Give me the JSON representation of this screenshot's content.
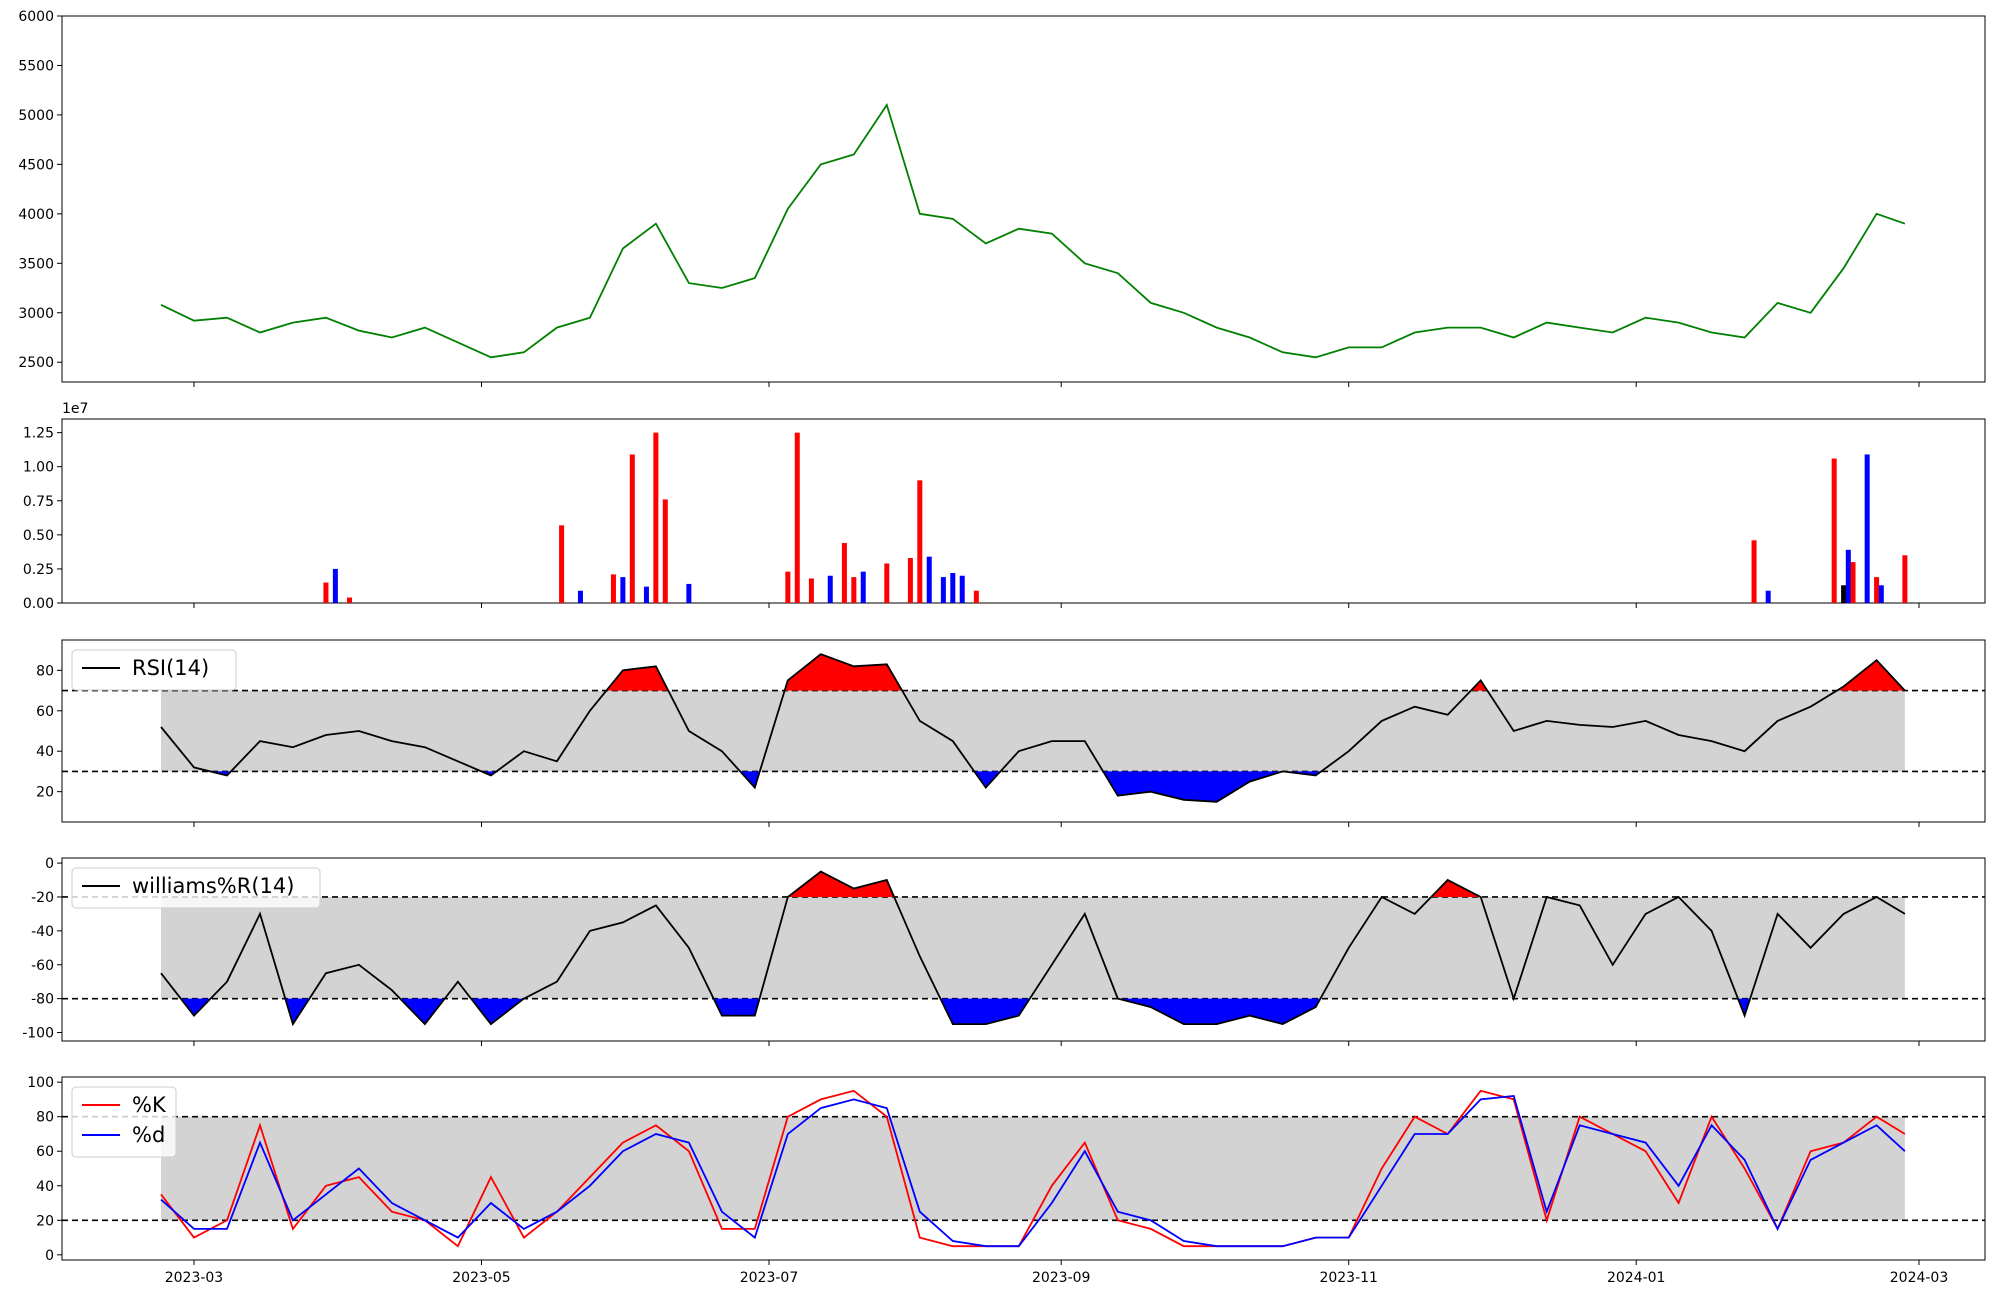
{
  "chart_data": [
    {
      "type": "line",
      "panel": "price",
      "ylim": [
        2300,
        6000
      ],
      "yticks": [
        2500,
        3000,
        3500,
        4000,
        4500,
        5000,
        5500,
        6000
      ],
      "color": "#008000",
      "x": [
        "2023-02-22",
        "2023-03-01",
        "2023-03-08",
        "2023-03-15",
        "2023-03-22",
        "2023-03-29",
        "2023-04-05",
        "2023-04-12",
        "2023-04-19",
        "2023-04-26",
        "2023-05-03",
        "2023-05-10",
        "2023-05-17",
        "2023-05-24",
        "2023-05-31",
        "2023-06-07",
        "2023-06-14",
        "2023-06-21",
        "2023-06-28",
        "2023-07-05",
        "2023-07-12",
        "2023-07-19",
        "2023-07-26",
        "2023-08-02",
        "2023-08-09",
        "2023-08-16",
        "2023-08-23",
        "2023-08-30",
        "2023-09-06",
        "2023-09-13",
        "2023-09-20",
        "2023-09-27",
        "2023-10-04",
        "2023-10-11",
        "2023-10-18",
        "2023-10-25",
        "2023-11-01",
        "2023-11-08",
        "2023-11-15",
        "2023-11-22",
        "2023-11-29",
        "2023-12-06",
        "2023-12-13",
        "2023-12-20",
        "2023-12-27",
        "2024-01-03",
        "2024-01-10",
        "2024-01-17",
        "2024-01-24",
        "2024-01-31",
        "2024-02-07",
        "2024-02-14",
        "2024-02-21",
        "2024-02-27"
      ],
      "values": [
        3080,
        2920,
        2950,
        2800,
        2900,
        2950,
        2820,
        2750,
        2850,
        2700,
        2550,
        2600,
        2850,
        2950,
        3650,
        3900,
        3300,
        3250,
        3350,
        4050,
        4500,
        4600,
        5100,
        4000,
        3950,
        3700,
        3850,
        3800,
        3500,
        3400,
        3100,
        3000,
        2850,
        2750,
        2600,
        2550,
        2650,
        2650,
        2800,
        2850,
        2850,
        2750,
        2900,
        2850,
        2800,
        2950,
        2900,
        2800,
        2750,
        3100,
        3000,
        3450,
        4000,
        3900
      ]
    },
    {
      "type": "bar",
      "panel": "volume",
      "ylim": [
        0,
        13500000
      ],
      "yticks": [
        0,
        0.25,
        0.5,
        0.75,
        1.0,
        1.25
      ],
      "ytick_labels": [
        "0.00",
        "0.25",
        "0.50",
        "0.75",
        "1.00",
        "1.25"
      ],
      "offset_label": "1e7",
      "up_color": "#ff0000",
      "down_color": "#0000ff",
      "bars": [
        {
          "x": "2023-03-29",
          "v": 1500000,
          "c": "r"
        },
        {
          "x": "2023-03-31",
          "v": 2500000,
          "c": "b"
        },
        {
          "x": "2023-04-03",
          "v": 400000,
          "c": "r"
        },
        {
          "x": "2023-05-18",
          "v": 5700000,
          "c": "r"
        },
        {
          "x": "2023-05-22",
          "v": 900000,
          "c": "b"
        },
        {
          "x": "2023-05-29",
          "v": 2100000,
          "c": "r"
        },
        {
          "x": "2023-05-31",
          "v": 1900000,
          "c": "b"
        },
        {
          "x": "2023-06-02",
          "v": 10900000,
          "c": "r"
        },
        {
          "x": "2023-06-05",
          "v": 1200000,
          "c": "b"
        },
        {
          "x": "2023-06-07",
          "v": 12500000,
          "c": "r"
        },
        {
          "x": "2023-06-09",
          "v": 7600000,
          "c": "r"
        },
        {
          "x": "2023-06-14",
          "v": 1400000,
          "c": "b"
        },
        {
          "x": "2023-07-05",
          "v": 2300000,
          "c": "r"
        },
        {
          "x": "2023-07-07",
          "v": 12500000,
          "c": "r"
        },
        {
          "x": "2023-07-10",
          "v": 1800000,
          "c": "r"
        },
        {
          "x": "2023-07-14",
          "v": 2000000,
          "c": "b"
        },
        {
          "x": "2023-07-17",
          "v": 4400000,
          "c": "r"
        },
        {
          "x": "2023-07-19",
          "v": 1900000,
          "c": "r"
        },
        {
          "x": "2023-07-21",
          "v": 2300000,
          "c": "b"
        },
        {
          "x": "2023-07-26",
          "v": 2900000,
          "c": "r"
        },
        {
          "x": "2023-07-31",
          "v": 3300000,
          "c": "r"
        },
        {
          "x": "2023-08-02",
          "v": 9000000,
          "c": "r"
        },
        {
          "x": "2023-08-04",
          "v": 3400000,
          "c": "b"
        },
        {
          "x": "2023-08-07",
          "v": 1900000,
          "c": "b"
        },
        {
          "x": "2023-08-09",
          "v": 2200000,
          "c": "b"
        },
        {
          "x": "2023-08-11",
          "v": 2000000,
          "c": "b"
        },
        {
          "x": "2023-08-14",
          "v": 900000,
          "c": "r"
        },
        {
          "x": "2024-01-26",
          "v": 4600000,
          "c": "r"
        },
        {
          "x": "2024-01-29",
          "v": 900000,
          "c": "b"
        },
        {
          "x": "2024-02-12",
          "v": 10600000,
          "c": "r"
        },
        {
          "x": "2024-02-14",
          "v": 1300000,
          "c": "k"
        },
        {
          "x": "2024-02-15",
          "v": 3900000,
          "c": "b"
        },
        {
          "x": "2024-02-16",
          "v": 3000000,
          "c": "r"
        },
        {
          "x": "2024-02-19",
          "v": 10900000,
          "c": "b"
        },
        {
          "x": "2024-02-21",
          "v": 1900000,
          "c": "r"
        },
        {
          "x": "2024-02-22",
          "v": 1300000,
          "c": "b"
        },
        {
          "x": "2024-02-27",
          "v": 3500000,
          "c": "r"
        }
      ]
    },
    {
      "type": "line",
      "panel": "rsi",
      "ylim": [
        5,
        95
      ],
      "yticks": [
        20,
        40,
        60,
        80
      ],
      "band": [
        30,
        70
      ],
      "series": [
        {
          "name": "RSI(14)",
          "color": "#000000"
        }
      ],
      "x": [
        "2023-02-22",
        "2023-03-01",
        "2023-03-08",
        "2023-03-15",
        "2023-03-22",
        "2023-03-29",
        "2023-04-05",
        "2023-04-12",
        "2023-04-19",
        "2023-04-26",
        "2023-05-03",
        "2023-05-10",
        "2023-05-17",
        "2023-05-24",
        "2023-05-31",
        "2023-06-07",
        "2023-06-14",
        "2023-06-21",
        "2023-06-28",
        "2023-07-05",
        "2023-07-12",
        "2023-07-19",
        "2023-07-26",
        "2023-08-02",
        "2023-08-09",
        "2023-08-16",
        "2023-08-23",
        "2023-08-30",
        "2023-09-06",
        "2023-09-13",
        "2023-09-20",
        "2023-09-27",
        "2023-10-04",
        "2023-10-11",
        "2023-10-18",
        "2023-10-25",
        "2023-11-01",
        "2023-11-08",
        "2023-11-15",
        "2023-11-22",
        "2023-11-29",
        "2023-12-06",
        "2023-12-13",
        "2023-12-20",
        "2023-12-27",
        "2024-01-03",
        "2024-01-10",
        "2024-01-17",
        "2024-01-24",
        "2024-01-31",
        "2024-02-07",
        "2024-02-14",
        "2024-02-21",
        "2024-02-27"
      ],
      "values": [
        52,
        32,
        28,
        45,
        42,
        48,
        50,
        45,
        42,
        35,
        28,
        40,
        35,
        60,
        80,
        82,
        50,
        40,
        22,
        75,
        88,
        82,
        83,
        55,
        45,
        22,
        40,
        45,
        45,
        18,
        20,
        16,
        15,
        25,
        30,
        28,
        40,
        55,
        62,
        58,
        75,
        50,
        55,
        53,
        52,
        55,
        48,
        45,
        40,
        55,
        62,
        72,
        85,
        70
      ]
    },
    {
      "type": "line",
      "panel": "williams",
      "ylim": [
        -105,
        3
      ],
      "yticks": [
        0,
        -20,
        -40,
        -60,
        -80,
        -100
      ],
      "band": [
        -80,
        -20
      ],
      "series": [
        {
          "name": "williams%R(14)",
          "color": "#000000"
        }
      ],
      "x": [
        "2023-02-22",
        "2023-03-01",
        "2023-03-08",
        "2023-03-15",
        "2023-03-22",
        "2023-03-29",
        "2023-04-05",
        "2023-04-12",
        "2023-04-19",
        "2023-04-26",
        "2023-05-03",
        "2023-05-10",
        "2023-05-17",
        "2023-05-24",
        "2023-05-31",
        "2023-06-07",
        "2023-06-14",
        "2023-06-21",
        "2023-06-28",
        "2023-07-05",
        "2023-07-12",
        "2023-07-19",
        "2023-07-26",
        "2023-08-02",
        "2023-08-09",
        "2023-08-16",
        "2023-08-23",
        "2023-08-30",
        "2023-09-06",
        "2023-09-13",
        "2023-09-20",
        "2023-09-27",
        "2023-10-04",
        "2023-10-11",
        "2023-10-18",
        "2023-10-25",
        "2023-11-01",
        "2023-11-08",
        "2023-11-15",
        "2023-11-22",
        "2023-11-29",
        "2023-12-06",
        "2023-12-13",
        "2023-12-20",
        "2023-12-27",
        "2024-01-03",
        "2024-01-10",
        "2024-01-17",
        "2024-01-24",
        "2024-01-31",
        "2024-02-07",
        "2024-02-14",
        "2024-02-21",
        "2024-02-27"
      ],
      "values": [
        -65,
        -90,
        -70,
        -30,
        -95,
        -65,
        -60,
        -75,
        -95,
        -70,
        -95,
        -80,
        -70,
        -40,
        -35,
        -25,
        -50,
        -90,
        -90,
        -20,
        -5,
        -15,
        -10,
        -55,
        -95,
        -95,
        -90,
        -60,
        -30,
        -80,
        -85,
        -95,
        -95,
        -90,
        -95,
        -85,
        -50,
        -20,
        -30,
        -10,
        -20,
        -80,
        -20,
        -25,
        -60,
        -30,
        -20,
        -40,
        -90,
        -30,
        -50,
        -30,
        -20,
        -30
      ]
    },
    {
      "type": "line",
      "panel": "stochastic",
      "ylim": [
        -3,
        103
      ],
      "yticks": [
        0,
        20,
        40,
        60,
        80,
        100
      ],
      "band": [
        20,
        80
      ],
      "series": [
        {
          "name": "%K",
          "color": "#ff0000",
          "values": [
            35,
            10,
            20,
            75,
            15,
            40,
            45,
            25,
            20,
            5,
            45,
            10,
            25,
            45,
            65,
            75,
            60,
            15,
            15,
            80,
            90,
            95,
            80,
            10,
            5,
            5,
            5,
            40,
            65,
            20,
            15,
            5,
            5,
            5,
            5,
            10,
            10,
            50,
            80,
            70,
            95,
            90,
            20,
            80,
            70,
            60,
            30,
            80,
            50,
            15,
            60,
            65,
            80,
            70
          ]
        },
        {
          "name": "%d",
          "color": "#0000ff",
          "values": [
            32,
            15,
            15,
            65,
            20,
            35,
            50,
            30,
            20,
            10,
            30,
            15,
            25,
            40,
            60,
            70,
            65,
            25,
            10,
            70,
            85,
            90,
            85,
            25,
            8,
            5,
            5,
            30,
            60,
            25,
            20,
            8,
            5,
            5,
            5,
            10,
            10,
            40,
            70,
            70,
            90,
            92,
            25,
            75,
            70,
            65,
            40,
            75,
            55,
            15,
            55,
            65,
            75,
            60
          ]
        }
      ],
      "x": [
        "2023-02-22",
        "2023-03-01",
        "2023-03-08",
        "2023-03-15",
        "2023-03-22",
        "2023-03-29",
        "2023-04-05",
        "2023-04-12",
        "2023-04-19",
        "2023-04-26",
        "2023-05-03",
        "2023-05-10",
        "2023-05-17",
        "2023-05-24",
        "2023-05-31",
        "2023-06-07",
        "2023-06-14",
        "2023-06-21",
        "2023-06-28",
        "2023-07-05",
        "2023-07-12",
        "2023-07-19",
        "2023-07-26",
        "2023-08-02",
        "2023-08-09",
        "2023-08-16",
        "2023-08-23",
        "2023-08-30",
        "2023-09-06",
        "2023-09-13",
        "2023-09-20",
        "2023-09-27",
        "2023-10-04",
        "2023-10-11",
        "2023-10-18",
        "2023-10-25",
        "2023-11-01",
        "2023-11-08",
        "2023-11-15",
        "2023-11-22",
        "2023-11-29",
        "2023-12-06",
        "2023-12-13",
        "2023-12-20",
        "2023-12-27",
        "2024-01-03",
        "2024-01-10",
        "2024-01-17",
        "2024-01-24",
        "2024-01-31",
        "2024-02-07",
        "2024-02-14",
        "2024-02-21",
        "2024-02-27"
      ]
    }
  ],
  "x_axis": {
    "range": [
      "2023-02-01",
      "2024-03-15"
    ],
    "ticks": [
      "2023-03-01",
      "2023-05-01",
      "2023-07-01",
      "2023-09-01",
      "2023-11-01",
      "2024-01-01",
      "2024-03-01"
    ],
    "tick_labels": [
      "2023-03",
      "2023-05",
      "2023-07",
      "2023-09",
      "2023-11",
      "2024-01",
      "2024-03"
    ]
  },
  "colors": {
    "band": "#d3d3d3",
    "overbought": "#ff0000",
    "oversold": "#0000ff",
    "axes": "#000000"
  }
}
